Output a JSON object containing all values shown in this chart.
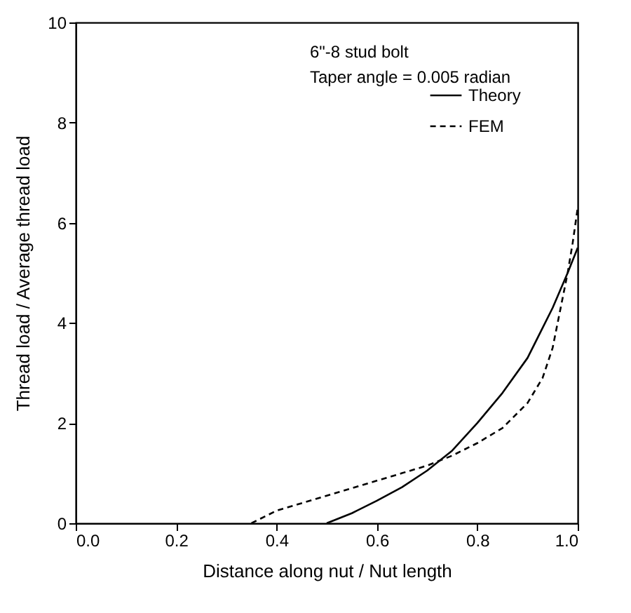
{
  "chart_data": {
    "type": "line",
    "xlabel": "Distance along nut / Nut length",
    "ylabel": "Thread load / Average thread load",
    "annotations": [
      "6\"-8 stud bolt",
      "Taper angle = 0.005 radian"
    ],
    "xlim": [
      0,
      1
    ],
    "ylim": [
      0,
      10
    ],
    "xticks": [
      {
        "value": 0,
        "label": "0.0"
      },
      {
        "value": 0.2,
        "label": "0.2"
      },
      {
        "value": 0.4,
        "label": "0.4"
      },
      {
        "value": 0.6,
        "label": "0.6"
      },
      {
        "value": 0.8,
        "label": "0.8"
      },
      {
        "value": 1,
        "label": "1.0"
      }
    ],
    "yticks": [
      0,
      2,
      4,
      6,
      8,
      10
    ],
    "grid": false,
    "legend": "top right",
    "marker": "none",
    "series": [
      {
        "name": "Theory",
        "color": "#000000",
        "line_style": "solid",
        "x": [
          0.5,
          0.55,
          0.6,
          0.65,
          0.7,
          0.75,
          0.8,
          0.85,
          0.9,
          0.95,
          0.98,
          1.0
        ],
        "values": [
          0,
          0.2,
          0.45,
          0.72,
          1.05,
          1.45,
          2.0,
          2.6,
          3.3,
          4.3,
          5.0,
          5.5
        ]
      },
      {
        "name": "FEM",
        "color": "#000000",
        "line_style": "dashed",
        "x": [
          0.35,
          0.4,
          0.45,
          0.5,
          0.55,
          0.6,
          0.65,
          0.7,
          0.75,
          0.8,
          0.85,
          0.9,
          0.93,
          0.95,
          0.97,
          0.98,
          0.99,
          1.0
        ],
        "values": [
          0,
          0.25,
          0.4,
          0.55,
          0.7,
          0.85,
          1.0,
          1.15,
          1.35,
          1.6,
          1.9,
          2.4,
          2.9,
          3.5,
          4.5,
          5.0,
          5.6,
          6.3
        ]
      }
    ]
  }
}
